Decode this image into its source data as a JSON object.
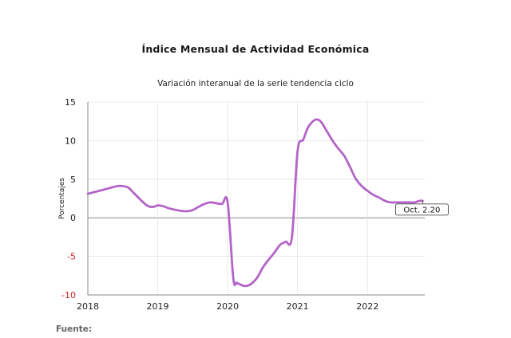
{
  "chart_data": {
    "type": "line",
    "title": "Índice Mensual de  Actividad Económica",
    "subtitle": "Variación interanual de la serie tendencia ciclo",
    "ylabel": "Porcentajes",
    "xlabel": "",
    "ylim": [
      -10,
      15
    ],
    "yticks": [
      "15",
      "10",
      "5",
      "0",
      "-5",
      "-10"
    ],
    "x_tick_labels": [
      "2018",
      "2019",
      "2020",
      "2021",
      "2022"
    ],
    "grid": true,
    "line_color": "#b464c8",
    "negative_tick_color": "#d42020",
    "series": [
      {
        "x": [
          2018.0,
          2018.08,
          2018.25,
          2018.42,
          2018.5,
          2018.58,
          2018.67,
          2018.83,
          2018.92,
          2019.0,
          2019.08,
          2019.17,
          2019.33,
          2019.42,
          2019.5,
          2019.58,
          2019.67,
          2019.75,
          2019.83,
          2019.92,
          2020.0,
          2020.08,
          2020.13,
          2020.17,
          2020.25,
          2020.33,
          2020.42,
          2020.5,
          2020.58,
          2020.67,
          2020.75,
          2020.83,
          2020.92,
          2021.0,
          2021.08,
          2021.13,
          2021.17,
          2021.25,
          2021.33,
          2021.42,
          2021.5,
          2021.58,
          2021.67,
          2021.75,
          2021.83,
          2021.92,
          2022.0,
          2022.08,
          2022.17,
          2022.25,
          2022.33,
          2022.42,
          2022.5,
          2022.58,
          2022.67,
          2022.75,
          2022.79
        ],
        "y": [
          3.1,
          3.3,
          3.7,
          4.1,
          4.1,
          3.9,
          3.1,
          1.7,
          1.4,
          1.6,
          1.5,
          1.2,
          0.9,
          0.85,
          1.0,
          1.4,
          1.8,
          2.0,
          1.9,
          1.8,
          2.0,
          -7.8,
          -8.4,
          -8.6,
          -8.85,
          -8.6,
          -7.8,
          -6.5,
          -5.5,
          -4.5,
          -3.5,
          -3.1,
          -2.5,
          8.6,
          10.1,
          11.3,
          12.0,
          12.7,
          12.5,
          11.2,
          10.0,
          9.0,
          8.0,
          6.6,
          5.1,
          4.1,
          3.5,
          3.0,
          2.6,
          2.2,
          2.0,
          2.0,
          2.0,
          2.0,
          2.0,
          2.2,
          2.2
        ]
      }
    ],
    "annotation": "Oct. 2.20"
  }
}
